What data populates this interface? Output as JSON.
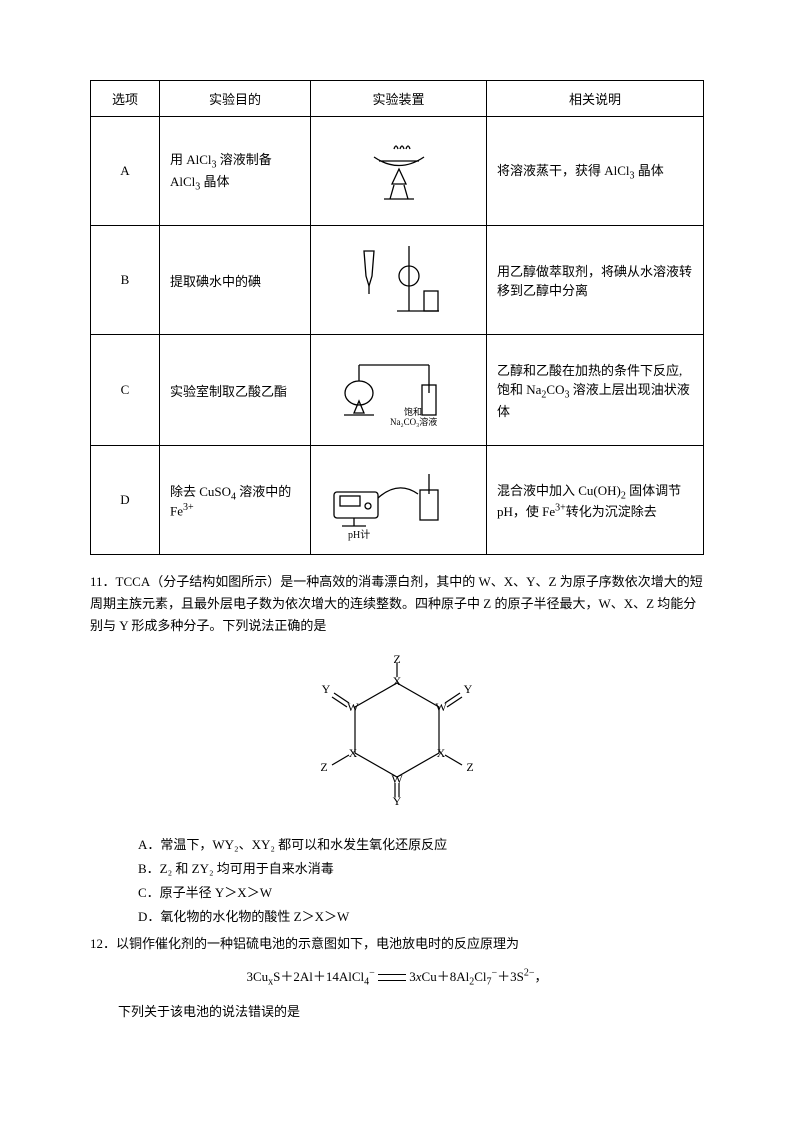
{
  "table": {
    "headers": [
      "选项",
      "实验目的",
      "实验装置",
      "相关说明"
    ],
    "rows": [
      {
        "opt": "A",
        "purpose_html": "用 AlCl<sub>3</sub> 溶液制备 AlCl<sub>3</sub> 晶体",
        "device_label": "evaporation-dish-setup",
        "desc_html": "将溶液蒸干，获得 AlCl<sub>3</sub> 晶体"
      },
      {
        "opt": "B",
        "purpose_html": "提取碘水中的碘",
        "device_label": "separating-funnel-setup",
        "desc_html": "用乙醇做萃取剂，将碘从水溶液转移到乙醇中分离"
      },
      {
        "opt": "C",
        "purpose_html": "实验室制取乙酸乙酯",
        "device_label": "distillation-na2co3-setup",
        "device_caption": "饱和\nNa₂CO₃溶液",
        "desc_html": "乙醇和乙酸在加热的条件下反应, 饱和 Na<sub>2</sub>CO<sub>3</sub> 溶液上层出现油状液体"
      },
      {
        "opt": "D",
        "purpose_html": "除去 CuSO<sub>4</sub> 溶液中的 Fe<sup>3+</sup>",
        "device_label": "ph-meter-setup",
        "device_caption": "pH计",
        "desc_html": "混合液中加入 Cu(OH)<sub>2</sub> 固体调节 pH，使 Fe<sup>3+</sup>转化为沉淀除去"
      }
    ],
    "border_color": "#000000",
    "cell_fontsize": 13
  },
  "q11": {
    "number": "11．",
    "stem": "TCCA（分子结构如图所示）是一种高效的消毒漂白剂，其中的 W、X、Y、Z 为原子序数依次增大的短周期主族元素，且最外层电子数为依次增大的连续整数。四种原子中 Z 的原子半径最大，W、X、Z 均能分别与 Y 形成多种分子。下列说法正确的是",
    "diagram": {
      "type": "molecule-ring",
      "ring_atoms": [
        "X",
        "W",
        "X",
        "W",
        "X",
        "W"
      ],
      "substituents": {
        "top": "Z",
        "top_right": "Y",
        "right": "Z",
        "bottom_right": "Y",
        "bottom": "Z",
        "bottom_left": "Y",
        "left": "Z",
        "top_left": "Y"
      },
      "label_fontsize": 12,
      "line_color": "#000000"
    },
    "options": {
      "A": "常温下，WY₂、XY₂ 都可以和水发生氧化还原反应",
      "B": "Z₂ 和 ZY₂ 均可用于自来水消毒",
      "C": "原子半径 Y＞X＞W",
      "D": "氧化物的水化物的酸性 Z＞X＞W"
    }
  },
  "q12": {
    "number": "12．",
    "stem": "以铜作催化剂的一种铝硫电池的示意图如下，电池放电时的反应原理为",
    "equation_html": "3Cu<sub>x</sub>S＋2Al＋14AlCl<sub>4</sub><sup>−</sup> <span class='eq-arrow'>⇌</span> 3<i>x</i>Cu＋8Al<sub>2</sub>Cl<sub>7</sub><sup>−</sup>＋3S<sup>2−</sup>，",
    "tail": "下列关于该电池的说法错误的是"
  },
  "colors": {
    "text": "#000000",
    "background": "#ffffff"
  }
}
